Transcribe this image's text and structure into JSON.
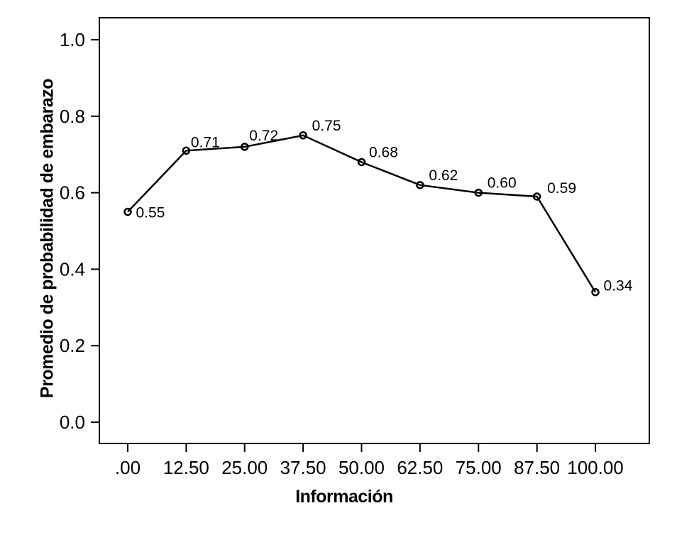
{
  "chart_data": {
    "type": "line",
    "title": "",
    "xlabel": "Información",
    "ylabel": "Promedio de probabilidad de embarazo",
    "x": [
      0,
      12.5,
      25,
      37.5,
      50,
      62.5,
      75,
      87.5,
      100
    ],
    "x_tick_labels": [
      ".00",
      "12.50",
      "25.00",
      "37.50",
      "50.00",
      "62.50",
      "75.00",
      "87.50",
      "100.00"
    ],
    "values": [
      0.55,
      0.71,
      0.72,
      0.75,
      0.68,
      0.62,
      0.6,
      0.59,
      0.34
    ],
    "point_labels": [
      "0.55",
      "0.71",
      "0.72",
      "0.75",
      "0.68",
      "0.62",
      "0.60",
      "0.59",
      "0.34"
    ],
    "y_ticks": [
      0.0,
      0.2,
      0.4,
      0.6,
      0.8,
      1.0
    ],
    "y_tick_labels": [
      "0.0",
      "0.2",
      "0.4",
      "0.6",
      "0.8",
      "1.0"
    ],
    "xlim": [
      0,
      100
    ],
    "ylim": [
      0.0,
      1.0
    ],
    "grid": false,
    "legend": "none",
    "marker": "open-circle",
    "line_color": "#000000",
    "axis_color": "#000000",
    "text_color": "#000000",
    "background_color": "#ffffff",
    "label_placement_hints": {
      "dx": [
        7,
        2,
        2,
        8,
        6,
        8,
        8,
        10,
        7
      ],
      "dy": [
        8,
        -5,
        -9,
        -7,
        -7,
        -7,
        -7,
        -5,
        -2
      ]
    }
  }
}
